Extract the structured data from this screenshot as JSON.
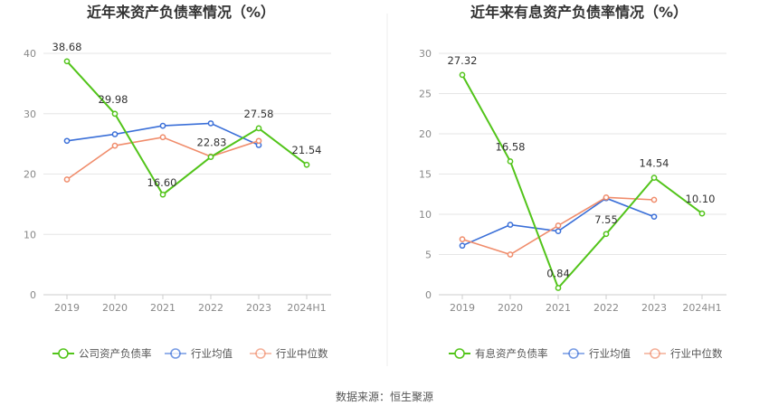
{
  "source_text": "数据来源：恒生聚源",
  "chart_data": [
    {
      "type": "line",
      "title": "近年来资产负债率情况（%）",
      "categories": [
        "2019",
        "2020",
        "2021",
        "2022",
        "2023",
        "2024H1"
      ],
      "ylim": [
        0,
        40
      ],
      "yticks": [
        0,
        10,
        20,
        30,
        40
      ],
      "grid": true,
      "legend": "bottom",
      "series": [
        {
          "name": "公司资产负债率",
          "color": "#52c41a",
          "values": [
            38.68,
            29.98,
            16.6,
            22.83,
            27.58,
            21.54
          ],
          "labels": [
            "38.68",
            "29.98",
            "16.60",
            "22.83",
            "27.58",
            "21.54"
          ]
        },
        {
          "name": "行业均值",
          "color": "#3a6fd8",
          "values": [
            25.5,
            26.6,
            28.0,
            28.4,
            24.8,
            null
          ],
          "labels": null
        },
        {
          "name": "行业中位数",
          "color": "#f08c6b",
          "values": [
            19.1,
            24.7,
            26.1,
            22.9,
            25.5,
            null
          ],
          "labels": null
        }
      ]
    },
    {
      "type": "line",
      "title": "近年来有息资产负债率情况（%）",
      "categories": [
        "2019",
        "2020",
        "2021",
        "2022",
        "2023",
        "2024H1"
      ],
      "ylim": [
        0,
        30
      ],
      "yticks": [
        0,
        5,
        10,
        15,
        20,
        25,
        30
      ],
      "grid": true,
      "legend": "bottom",
      "series": [
        {
          "name": "有息资产负债率",
          "color": "#52c41a",
          "values": [
            27.32,
            16.58,
            0.84,
            7.55,
            14.54,
            10.1
          ],
          "labels": [
            "27.32",
            "16.58",
            "0.84",
            "7.55",
            "14.54",
            "10.10"
          ]
        },
        {
          "name": "行业均值",
          "color": "#3a6fd8",
          "values": [
            6.1,
            8.7,
            7.9,
            12.0,
            9.7,
            null
          ],
          "labels": null
        },
        {
          "name": "行业中位数",
          "color": "#f08c6b",
          "values": [
            6.9,
            5.0,
            8.6,
            12.1,
            11.8,
            null
          ],
          "labels": null
        }
      ]
    }
  ]
}
